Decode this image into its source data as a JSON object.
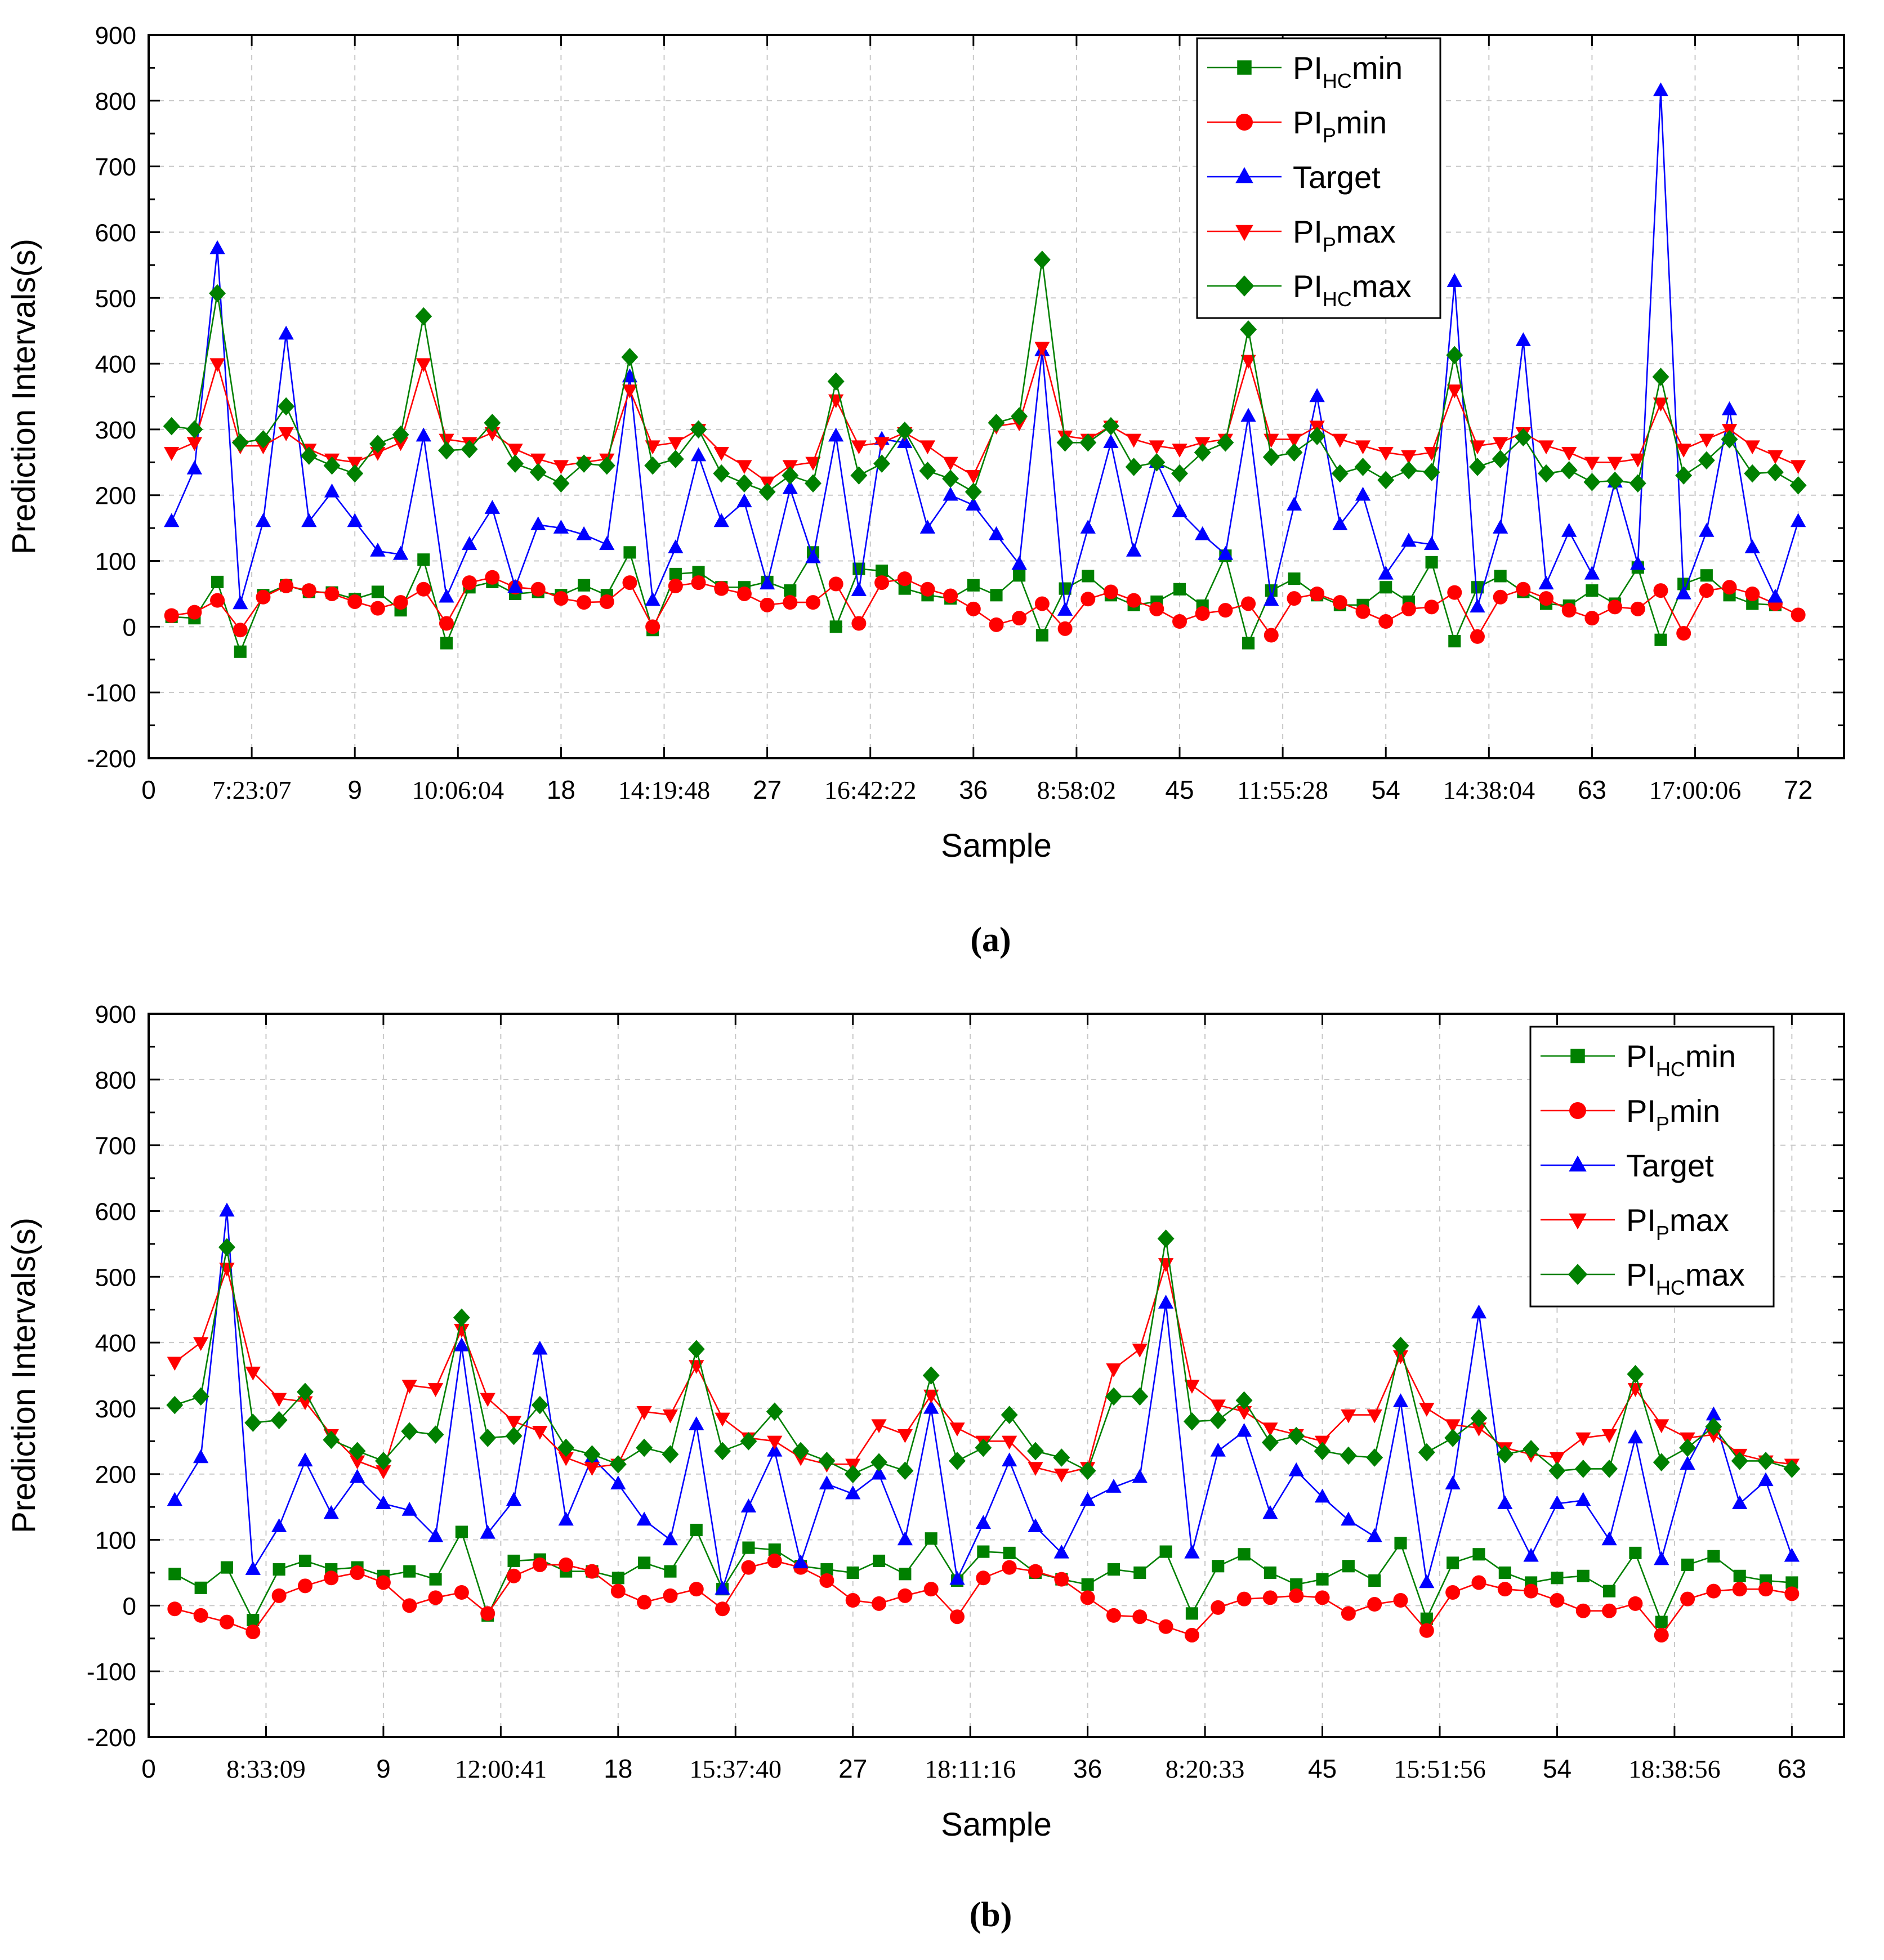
{
  "chart_data": [
    {
      "panel_caption": "(a)",
      "type": "line",
      "xlabel": "Sample",
      "ylabel": "Prediction Intervals(s)",
      "xlim": [
        0,
        74
      ],
      "ylim": [
        -200,
        900
      ],
      "yticks": [
        -200,
        -100,
        0,
        100,
        200,
        300,
        400,
        500,
        600,
        700,
        800,
        900
      ],
      "xticks": [
        {
          "x": 0,
          "label": "0",
          "style": "sans"
        },
        {
          "x": 4.5,
          "label": "7:23:07",
          "style": "serif"
        },
        {
          "x": 9,
          "label": "9",
          "style": "sans"
        },
        {
          "x": 13.5,
          "label": "10:06:04",
          "style": "serif"
        },
        {
          "x": 18,
          "label": "18",
          "style": "sans"
        },
        {
          "x": 22.5,
          "label": "14:19:48",
          "style": "serif"
        },
        {
          "x": 27,
          "label": "27",
          "style": "sans"
        },
        {
          "x": 31.5,
          "label": "16:42:22",
          "style": "serif"
        },
        {
          "x": 36,
          "label": "36",
          "style": "sans"
        },
        {
          "x": 40.5,
          "label": "8:58:02",
          "style": "serif"
        },
        {
          "x": 45,
          "label": "45",
          "style": "sans"
        },
        {
          "x": 49.5,
          "label": "11:55:28",
          "style": "serif"
        },
        {
          "x": 54,
          "label": "54",
          "style": "sans"
        },
        {
          "x": 58.5,
          "label": "14:38:04",
          "style": "serif"
        },
        {
          "x": 63,
          "label": "63",
          "style": "sans"
        },
        {
          "x": 67.5,
          "label": "17:00:06",
          "style": "serif"
        },
        {
          "x": 72,
          "label": "72",
          "style": "sans"
        }
      ],
      "grid": true,
      "legend_position": "top-right",
      "series": [
        {
          "key": "pihcmin",
          "name": "PIHCmin",
          "base": "PI",
          "sub": "HC",
          "suffix": "min",
          "color": "#008000",
          "marker": "square",
          "values": [
            15,
            13,
            68,
            -38,
            48,
            63,
            53,
            52,
            42,
            53,
            25,
            102,
            -25,
            60,
            68,
            50,
            53,
            48,
            63,
            48,
            113,
            -5,
            80,
            83,
            60,
            60,
            68,
            55,
            113,
            0,
            88,
            85,
            58,
            48,
            43,
            63,
            48,
            78,
            -13,
            58,
            77,
            48,
            33,
            38,
            57,
            32,
            108,
            -25,
            55,
            73,
            48,
            33,
            33,
            60,
            38,
            98,
            -22,
            60,
            77,
            53,
            35,
            32,
            55,
            35,
            90,
            -20,
            65,
            78,
            48,
            35,
            33
          ]
        },
        {
          "key": "pipmin",
          "name": "PIPmin",
          "base": "PI",
          "sub": "P",
          "suffix": "min",
          "color": "#ff0000",
          "marker": "circle",
          "values": [
            17,
            22,
            40,
            -5,
            45,
            62,
            55,
            50,
            38,
            28,
            37,
            57,
            5,
            67,
            75,
            60,
            57,
            43,
            37,
            38,
            67,
            0,
            62,
            67,
            58,
            50,
            33,
            37,
            37,
            65,
            5,
            67,
            73,
            57,
            47,
            27,
            3,
            13,
            35,
            -3,
            42,
            53,
            40,
            27,
            8,
            20,
            25,
            35,
            -13,
            43,
            50,
            37,
            23,
            8,
            27,
            30,
            52,
            -15,
            45,
            57,
            43,
            25,
            13,
            30,
            27,
            55,
            -10,
            55,
            60,
            50,
            35,
            18
          ]
        },
        {
          "key": "target",
          "name": "Target",
          "base": "Target",
          "sub": "",
          "suffix": "",
          "color": "#0000ff",
          "marker": "triangle-up",
          "values": [
            160,
            240,
            575,
            35,
            160,
            445,
            160,
            205,
            160,
            115,
            110,
            290,
            45,
            125,
            180,
            60,
            155,
            150,
            140,
            125,
            380,
            40,
            120,
            260,
            160,
            190,
            65,
            210,
            105,
            290,
            55,
            285,
            280,
            150,
            200,
            185,
            140,
            95,
            420,
            25,
            150,
            280,
            115,
            250,
            175,
            140,
            110,
            320,
            40,
            185,
            350,
            155,
            200,
            80,
            130,
            125,
            525,
            30,
            150,
            435,
            65,
            145,
            80,
            220,
            95,
            815,
            50,
            145,
            330,
            120,
            45,
            160
          ]
        },
        {
          "key": "pipmax",
          "name": "PIPmax",
          "base": "PI",
          "sub": "P",
          "suffix": "max",
          "color": "#ff0000",
          "marker": "triangle-down",
          "values": [
            265,
            280,
            400,
            275,
            275,
            295,
            270,
            255,
            250,
            265,
            280,
            400,
            285,
            280,
            295,
            270,
            255,
            245,
            250,
            255,
            360,
            275,
            280,
            300,
            265,
            245,
            220,
            245,
            250,
            345,
            275,
            280,
            295,
            275,
            250,
            230,
            305,
            310,
            425,
            290,
            285,
            305,
            285,
            275,
            270,
            280,
            285,
            405,
            285,
            285,
            305,
            285,
            275,
            265,
            260,
            265,
            360,
            275,
            280,
            295,
            275,
            265,
            250,
            250,
            255,
            340,
            270,
            285,
            300,
            275,
            260,
            245
          ]
        },
        {
          "key": "pihcmax",
          "name": "PIHCmax",
          "base": "PI",
          "sub": "HC",
          "suffix": "max",
          "color": "#008000",
          "marker": "diamond",
          "values": [
            305,
            300,
            507,
            280,
            285,
            335,
            260,
            245,
            233,
            278,
            292,
            472,
            268,
            270,
            310,
            248,
            235,
            218,
            248,
            245,
            410,
            245,
            255,
            300,
            233,
            218,
            205,
            230,
            218,
            373,
            230,
            248,
            298,
            237,
            225,
            205,
            310,
            320,
            558,
            280,
            280,
            305,
            243,
            250,
            233,
            265,
            280,
            452,
            258,
            265,
            290,
            233,
            243,
            223,
            238,
            235,
            413,
            243,
            255,
            288,
            233,
            238,
            220,
            222,
            218,
            380,
            230,
            253,
            285,
            233,
            235,
            215
          ]
        }
      ],
      "legend": [
        {
          "key": "pihcmin",
          "base": "PI",
          "sub": "HC",
          "suffix": "min"
        },
        {
          "key": "pipmin",
          "base": "PI",
          "sub": "P",
          "suffix": "min"
        },
        {
          "key": "target",
          "base": "Target",
          "sub": "",
          "suffix": ""
        },
        {
          "key": "pipmax",
          "base": "PI",
          "sub": "P",
          "suffix": "max"
        },
        {
          "key": "pihcmax",
          "base": "PI",
          "sub": "HC",
          "suffix": "max"
        }
      ]
    },
    {
      "panel_caption": "(b)",
      "type": "line",
      "xlabel": "Sample",
      "ylabel": "Prediction Intervals(s)",
      "xlim": [
        0,
        65
      ],
      "ylim": [
        -200,
        900
      ],
      "yticks": [
        -200,
        -100,
        0,
        100,
        200,
        300,
        400,
        500,
        600,
        700,
        800,
        900
      ],
      "xticks": [
        {
          "x": 0,
          "label": "0",
          "style": "sans"
        },
        {
          "x": 4.5,
          "label": "8:33:09",
          "style": "serif"
        },
        {
          "x": 9,
          "label": "9",
          "style": "sans"
        },
        {
          "x": 13.5,
          "label": "12:00:41",
          "style": "serif"
        },
        {
          "x": 18,
          "label": "18",
          "style": "sans"
        },
        {
          "x": 22.5,
          "label": "15:37:40",
          "style": "serif"
        },
        {
          "x": 27,
          "label": "27",
          "style": "sans"
        },
        {
          "x": 31.5,
          "label": "18:11:16",
          "style": "serif"
        },
        {
          "x": 36,
          "label": "36",
          "style": "sans"
        },
        {
          "x": 40.5,
          "label": "8:20:33",
          "style": "serif"
        },
        {
          "x": 45,
          "label": "45",
          "style": "sans"
        },
        {
          "x": 49.5,
          "label": "15:51:56",
          "style": "serif"
        },
        {
          "x": 54,
          "label": "54",
          "style": "sans"
        },
        {
          "x": 58.5,
          "label": "18:38:56",
          "style": "serif"
        },
        {
          "x": 63,
          "label": "63",
          "style": "sans"
        }
      ],
      "grid": true,
      "legend_position": "top-right",
      "series": [
        {
          "key": "pihcmin",
          "name": "PIHCmin",
          "base": "PI",
          "sub": "HC",
          "suffix": "min",
          "color": "#008000",
          "marker": "square",
          "values": [
            48,
            27,
            58,
            -22,
            55,
            68,
            55,
            58,
            45,
            52,
            40,
            112,
            -15,
            68,
            70,
            52,
            52,
            42,
            65,
            52,
            115,
            25,
            88,
            85,
            60,
            55,
            50,
            68,
            48,
            102,
            38,
            82,
            80,
            50,
            40,
            32,
            55,
            50,
            82,
            -12,
            60,
            78,
            50,
            32,
            40,
            60,
            38,
            95,
            -20,
            65,
            78,
            50,
            35,
            42,
            45,
            22,
            80,
            -25,
            62,
            75,
            45,
            38,
            35
          ]
        },
        {
          "key": "pipmin",
          "name": "PIPmin",
          "base": "PI",
          "sub": "P",
          "suffix": "min",
          "color": "#ff0000",
          "marker": "circle",
          "values": [
            -5,
            -15,
            -25,
            -40,
            15,
            30,
            42,
            50,
            35,
            0,
            12,
            20,
            -12,
            45,
            62,
            62,
            52,
            22,
            5,
            15,
            25,
            -5,
            58,
            68,
            58,
            38,
            8,
            3,
            15,
            25,
            -17,
            42,
            58,
            52,
            40,
            12,
            -15,
            -17,
            -32,
            -45,
            -3,
            10,
            12,
            15,
            12,
            -12,
            2,
            8,
            -38,
            20,
            35,
            25,
            22,
            8,
            -8,
            -8,
            3,
            -45,
            10,
            22,
            25,
            25,
            18
          ]
        },
        {
          "key": "target",
          "name": "Target",
          "base": "Target",
          "sub": "",
          "suffix": "",
          "color": "#0000ff",
          "marker": "triangle-up",
          "values": [
            160,
            225,
            600,
            55,
            120,
            220,
            140,
            195,
            155,
            145,
            105,
            395,
            110,
            160,
            390,
            130,
            225,
            185,
            130,
            100,
            275,
            25,
            150,
            235,
            65,
            185,
            170,
            200,
            100,
            300,
            40,
            125,
            220,
            120,
            80,
            160,
            180,
            195,
            460,
            80,
            235,
            265,
            140,
            205,
            165,
            130,
            105,
            310,
            35,
            185,
            445,
            155,
            75,
            155,
            160,
            100,
            255,
            70,
            215,
            290,
            155,
            190,
            75
          ]
        },
        {
          "key": "pipmax",
          "name": "PIPmax",
          "base": "PI",
          "sub": "P",
          "suffix": "max",
          "color": "#ff0000",
          "marker": "triangle-down",
          "values": [
            370,
            400,
            513,
            355,
            315,
            310,
            260,
            220,
            205,
            335,
            330,
            420,
            315,
            280,
            265,
            225,
            210,
            215,
            295,
            290,
            365,
            285,
            255,
            250,
            225,
            215,
            215,
            275,
            260,
            320,
            270,
            250,
            250,
            210,
            200,
            210,
            360,
            390,
            520,
            335,
            305,
            295,
            270,
            260,
            250,
            290,
            290,
            380,
            300,
            275,
            270,
            240,
            230,
            225,
            255,
            260,
            330,
            275,
            255,
            260,
            230,
            220,
            215
          ]
        },
        {
          "key": "pihcmax",
          "name": "PIHCmax",
          "base": "PI",
          "sub": "HC",
          "suffix": "max",
          "color": "#008000",
          "marker": "diamond",
          "values": [
            305,
            318,
            545,
            278,
            282,
            325,
            252,
            235,
            220,
            265,
            260,
            438,
            255,
            258,
            305,
            240,
            230,
            215,
            240,
            230,
            390,
            235,
            250,
            295,
            235,
            220,
            200,
            218,
            205,
            350,
            220,
            240,
            290,
            235,
            225,
            205,
            318,
            318,
            558,
            280,
            282,
            312,
            248,
            258,
            235,
            228,
            225,
            395,
            233,
            255,
            285,
            230,
            238,
            205,
            208,
            208,
            352,
            218,
            240,
            272,
            220,
            220,
            208
          ]
        }
      ],
      "legend": [
        {
          "key": "pihcmin",
          "base": "PI",
          "sub": "HC",
          "suffix": "min"
        },
        {
          "key": "pipmin",
          "base": "PI",
          "sub": "P",
          "suffix": "min"
        },
        {
          "key": "target",
          "base": "Target",
          "sub": "",
          "suffix": ""
        },
        {
          "key": "pipmax",
          "base": "PI",
          "sub": "P",
          "suffix": "max"
        },
        {
          "key": "pihcmax",
          "base": "PI",
          "sub": "HC",
          "suffix": "max"
        }
      ]
    }
  ]
}
